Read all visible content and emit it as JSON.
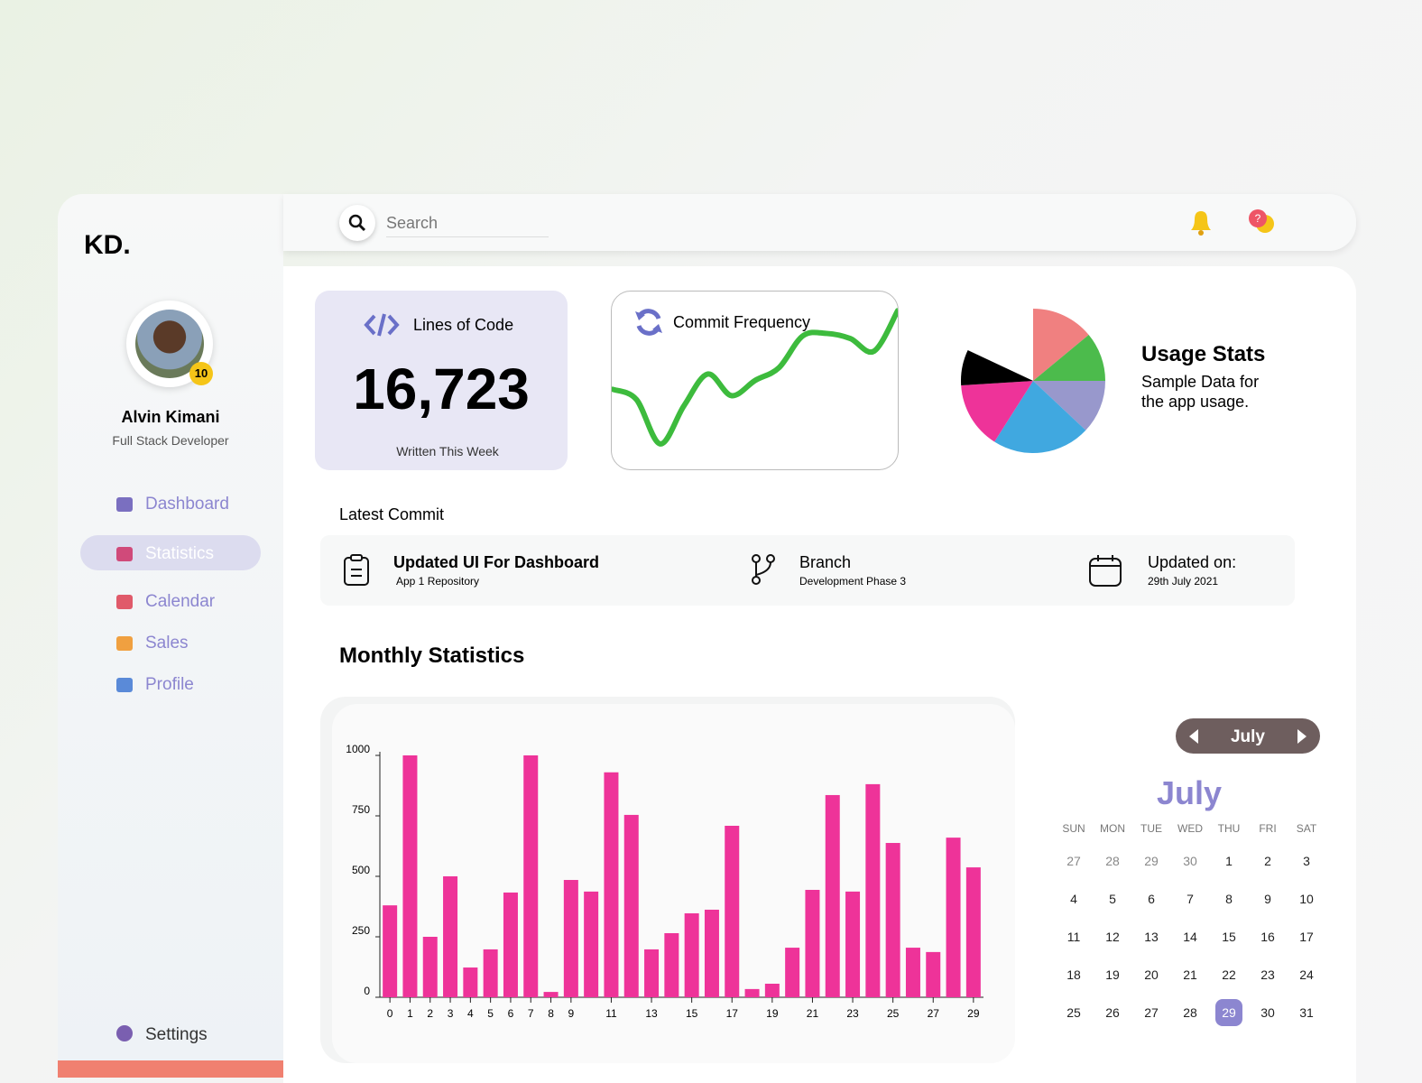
{
  "sidebar": {
    "logo": "KD.",
    "profile": {
      "name": "Alvin Kimani",
      "role": "Full Stack Developer",
      "badge": "10"
    },
    "nav": [
      "Dashboard",
      "Statistics",
      "Calendar",
      "Sales",
      "Profile"
    ],
    "settings": "Settings"
  },
  "search": {
    "placeholder": "Search"
  },
  "help_badge": "?",
  "lines_of_code": {
    "title": "Lines of Code",
    "value": "16,723",
    "caption": "Written This Week"
  },
  "commit_frequency": {
    "title": "Commit Frequency",
    "chart": {
      "type": "line",
      "values": [
        63,
        55,
        20,
        50,
        75,
        58,
        70,
        80,
        105,
        107,
        103,
        93,
        125
      ],
      "ylim": [
        0,
        140
      ],
      "color": "#3dbb3d"
    }
  },
  "usage_stats": {
    "title": "Usage Stats",
    "subtitle": "Sample Data for the app usage.",
    "chart": {
      "type": "pie",
      "values": [
        14,
        11,
        12,
        22,
        15,
        8
      ],
      "colors": [
        "#f08080",
        "#4cbb4c",
        "#9898cc",
        "#40a8e0",
        "#ee3399",
        "#000000"
      ]
    }
  },
  "latest_commit": {
    "heading": "Latest Commit",
    "commit": {
      "title": "Updated UI For Dashboard",
      "repo": "App 1 Repository"
    },
    "branch": {
      "label": "Branch",
      "name": "Development Phase 3"
    },
    "updated": {
      "label": "Updated on:",
      "date": "29th July 2021"
    }
  },
  "monthly_statistics": {
    "title": "Monthly Statistics",
    "chart": {
      "type": "bar",
      "color": "#ee3399",
      "categories": [
        "0",
        "1",
        "2",
        "3",
        "4",
        "5",
        "6",
        "7",
        "8",
        "9",
        null,
        "11",
        null,
        "13",
        null,
        "15",
        null,
        "17",
        null,
        "19",
        null,
        "21",
        null,
        "23",
        null,
        "25",
        null,
        "27",
        null,
        "29"
      ],
      "values": [
        380,
        1000,
        250,
        500,
        123,
        198,
        433,
        1000,
        22,
        485,
        437,
        930,
        754,
        198,
        265,
        347,
        362,
        709,
        34,
        56,
        205,
        444,
        836,
        437,
        881,
        638,
        205,
        187,
        660,
        537
      ],
      "ylim": [
        0,
        1000
      ],
      "yticks": [
        0,
        250,
        500,
        750,
        1000
      ]
    }
  },
  "calendar": {
    "nav_month": "July",
    "month": "July",
    "weekdays": [
      "SUN",
      "MON",
      "TUE",
      "WED",
      "THU",
      "FRI",
      "SAT"
    ],
    "weeks": [
      [
        27,
        28,
        29,
        30,
        1,
        2,
        3
      ],
      [
        4,
        5,
        6,
        7,
        8,
        9,
        10
      ],
      [
        11,
        12,
        13,
        14,
        15,
        16,
        17
      ],
      [
        18,
        19,
        20,
        21,
        22,
        23,
        24
      ],
      [
        25,
        26,
        27,
        28,
        29,
        30,
        31
      ]
    ],
    "selected_day": 29
  }
}
